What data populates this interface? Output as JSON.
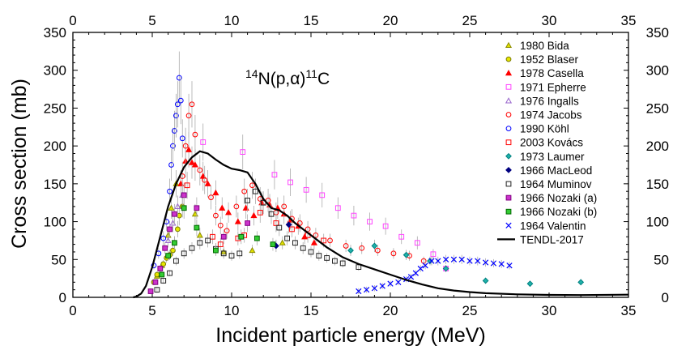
{
  "chart_data": {
    "type": "scatter",
    "title": "14N(p,α)11C",
    "title_parts": {
      "pre_sup": "14",
      "main1": "N(p,",
      "alpha": "α",
      "main2": ")",
      "post_sup": "11",
      "end": "C"
    },
    "xlabel": "Incident particle energy (MeV)",
    "ylabel": "Cross section (mb)",
    "xlim": [
      0,
      35
    ],
    "ylim": [
      0,
      350
    ],
    "xticks": [
      0,
      5,
      10,
      15,
      20,
      25,
      30,
      35
    ],
    "yticks": [
      0,
      50,
      100,
      150,
      200,
      250,
      300,
      350
    ],
    "legend_position": "top-right",
    "series": [
      {
        "name": "1980 Bida",
        "marker": "triangle",
        "color": "#8a8a00",
        "fill": "#e0e000",
        "points": [
          [
            5.3,
            28
          ],
          [
            5.6,
            42
          ],
          [
            6.0,
            82
          ],
          [
            6.2,
            118
          ],
          [
            6.5,
            150
          ],
          [
            7.7,
            110
          ],
          [
            8.0,
            82
          ],
          [
            9.5,
            60
          ],
          [
            11.3,
            62
          ],
          [
            13.2,
            72
          ]
        ]
      },
      {
        "name": "1952 Blaser",
        "marker": "circle",
        "color": "#7a7a00",
        "fill": "#e6e600",
        "points": [
          [
            5.1,
            20
          ],
          [
            5.3,
            30
          ],
          [
            5.5,
            38
          ],
          [
            5.7,
            44
          ],
          [
            5.9,
            52
          ],
          [
            6.1,
            56
          ],
          [
            6.3,
            62
          ],
          [
            6.4,
            72
          ],
          [
            6.6,
            90
          ],
          [
            6.7,
            108
          ],
          [
            6.9,
            120
          ]
        ]
      },
      {
        "name": "1978 Casella",
        "marker": "triangle",
        "color": "#ff0000",
        "fill": "#ff0000",
        "points": [
          [
            6.8,
            150
          ],
          [
            7.1,
            180
          ],
          [
            7.3,
            195
          ],
          [
            7.5,
            178
          ],
          [
            7.7,
            175
          ],
          [
            8.2,
            160
          ],
          [
            8.5,
            150
          ],
          [
            9.0,
            138
          ],
          [
            9.4,
            118
          ],
          [
            9.8,
            112
          ],
          [
            10.4,
            100
          ],
          [
            10.9,
            118
          ],
          [
            11.4,
            108
          ],
          [
            11.9,
            125
          ],
          [
            12.4,
            122
          ],
          [
            12.9,
            118
          ],
          [
            13.3,
            110
          ],
          [
            13.7,
            102
          ],
          [
            14.2,
            94
          ],
          [
            14.6,
            80
          ],
          [
            15.2,
            72
          ]
        ]
      },
      {
        "name": "1971 Epherre",
        "marker": "square",
        "color": "#ff44ff",
        "fill": "none",
        "points": [
          [
            8.2,
            205
          ],
          [
            10.7,
            192
          ],
          [
            12.7,
            162
          ],
          [
            13.7,
            152
          ],
          [
            14.7,
            142
          ],
          [
            15.7,
            135
          ],
          [
            16.7,
            118
          ],
          [
            17.7,
            108
          ],
          [
            18.7,
            100
          ],
          [
            19.7,
            94
          ],
          [
            20.7,
            80
          ],
          [
            21.7,
            72
          ],
          [
            22.7,
            57
          ],
          [
            23.5,
            38
          ]
        ]
      },
      {
        "name": "1976 Ingalls",
        "marker": "triangle",
        "color": "#9966cc",
        "fill": "none",
        "points": [
          [
            6.0,
            75
          ],
          [
            6.3,
            98
          ],
          [
            6.6,
            120
          ],
          [
            6.9,
            135
          ]
        ]
      },
      {
        "name": "1974 Jacobs",
        "marker": "circle",
        "color": "#ff0000",
        "fill": "none",
        "points": [
          [
            6.9,
            160
          ],
          [
            7.1,
            200
          ],
          [
            7.3,
            240
          ],
          [
            7.5,
            255
          ],
          [
            7.7,
            215
          ],
          [
            8.0,
            168
          ],
          [
            8.3,
            155
          ],
          [
            8.7,
            132
          ],
          [
            9.0,
            108
          ],
          [
            9.3,
            95
          ],
          [
            9.7,
            88
          ],
          [
            10.3,
            120
          ],
          [
            10.8,
            140
          ],
          [
            11.3,
            148
          ],
          [
            11.8,
            130
          ],
          [
            12.3,
            128
          ],
          [
            12.8,
            112
          ],
          [
            13.3,
            120
          ],
          [
            13.8,
            104
          ],
          [
            14.3,
            98
          ],
          [
            14.8,
            90
          ],
          [
            15.3,
            82
          ],
          [
            16.2,
            75
          ],
          [
            17.2,
            68
          ],
          [
            18.2,
            65
          ],
          [
            19.2,
            62
          ],
          [
            20.2,
            58
          ],
          [
            21.2,
            55
          ],
          [
            22.1,
            48
          ]
        ]
      },
      {
        "name": "1990 Köhl",
        "marker": "circle",
        "color": "#0000ff",
        "fill": "none",
        "points": [
          [
            5.1,
            42
          ],
          [
            5.4,
            58
          ],
          [
            5.7,
            78
          ],
          [
            5.9,
            100
          ],
          [
            6.1,
            140
          ],
          [
            6.2,
            175
          ],
          [
            6.3,
            200
          ],
          [
            6.4,
            220
          ],
          [
            6.5,
            240
          ],
          [
            6.6,
            255
          ],
          [
            6.7,
            290
          ],
          [
            6.8,
            260
          ],
          [
            6.9,
            210
          ]
        ]
      },
      {
        "name": "2003 Kovács",
        "marker": "square",
        "color": "#ff0000",
        "fill": "none",
        "points": [
          [
            7.2,
            148
          ],
          [
            8.8,
            80
          ],
          [
            9.3,
            70
          ],
          [
            10.4,
            78
          ],
          [
            10.8,
            82
          ],
          [
            11.8,
            112
          ],
          [
            12.8,
            98
          ],
          [
            13.8,
            90
          ],
          [
            14.8,
            82
          ],
          [
            15.8,
            75
          ]
        ]
      },
      {
        "name": "1973 Laumer",
        "marker": "diamond",
        "color": "#008080",
        "fill": "#20b2aa",
        "points": [
          [
            17.5,
            62
          ],
          [
            19.0,
            68
          ],
          [
            21.0,
            56
          ],
          [
            22.5,
            48
          ],
          [
            23.5,
            38
          ],
          [
            26.0,
            22
          ],
          [
            28.8,
            18
          ],
          [
            32.0,
            20
          ]
        ]
      },
      {
        "name": "1966 MacLeod",
        "marker": "diamond",
        "color": "#000080",
        "fill": "#000080",
        "points": [
          [
            12.8,
            68
          ],
          [
            13.6,
            96
          ]
        ]
      },
      {
        "name": "1964 Muminov",
        "marker": "square",
        "color": "#222222",
        "fill": "none",
        "points": [
          [
            5.3,
            10
          ],
          [
            5.7,
            22
          ],
          [
            6.1,
            32
          ],
          [
            6.5,
            48
          ],
          [
            7.0,
            58
          ],
          [
            7.5,
            65
          ],
          [
            8.0,
            72
          ],
          [
            8.5,
            75
          ],
          [
            9.0,
            64
          ],
          [
            9.5,
            58
          ],
          [
            10.0,
            55
          ],
          [
            10.5,
            58
          ],
          [
            11.0,
            128
          ],
          [
            11.5,
            140
          ],
          [
            12.0,
            125
          ],
          [
            12.5,
            110
          ],
          [
            13.0,
            92
          ],
          [
            13.5,
            78
          ],
          [
            14.0,
            72
          ],
          [
            14.5,
            65
          ],
          [
            15.0,
            60
          ],
          [
            15.5,
            55
          ],
          [
            16.0,
            52
          ],
          [
            16.5,
            48
          ],
          [
            17.0,
            45
          ],
          [
            18.0,
            40
          ]
        ]
      },
      {
        "name": "1966 Nozaki (a)",
        "marker": "square",
        "color": "#800080",
        "fill": "#cc33cc",
        "points": [
          [
            4.9,
            8
          ],
          [
            5.2,
            20
          ],
          [
            5.5,
            38
          ],
          [
            5.8,
            65
          ],
          [
            6.1,
            90
          ],
          [
            6.4,
            110
          ],
          [
            7.0,
            135
          ],
          [
            7.8,
            118
          ],
          [
            9.5,
            80
          ],
          [
            11.0,
            98
          ]
        ]
      },
      {
        "name": "1966 Nozaki (b)",
        "marker": "square",
        "color": "#006600",
        "fill": "#33cc33",
        "points": [
          [
            5.6,
            30
          ],
          [
            6.0,
            55
          ],
          [
            6.4,
            72
          ],
          [
            7.0,
            118
          ],
          [
            7.8,
            92
          ],
          [
            9.0,
            62
          ],
          [
            10.6,
            80
          ],
          [
            11.6,
            78
          ],
          [
            12.6,
            70
          ]
        ]
      },
      {
        "name": "1964 Valentin",
        "marker": "x",
        "color": "#0000ff",
        "fill": "none",
        "points": [
          [
            18.0,
            8
          ],
          [
            18.5,
            10
          ],
          [
            19.0,
            12
          ],
          [
            19.5,
            15
          ],
          [
            20.0,
            18
          ],
          [
            20.5,
            20
          ],
          [
            21.0,
            24
          ],
          [
            21.3,
            27
          ],
          [
            21.6,
            32
          ],
          [
            21.9,
            38
          ],
          [
            22.2,
            42
          ],
          [
            22.6,
            48
          ],
          [
            23.0,
            48
          ],
          [
            23.5,
            50
          ],
          [
            24.0,
            50
          ],
          [
            24.5,
            50
          ],
          [
            25.0,
            48
          ],
          [
            25.5,
            48
          ],
          [
            26.0,
            46
          ],
          [
            26.5,
            45
          ],
          [
            27.0,
            44
          ],
          [
            27.5,
            42
          ]
        ]
      },
      {
        "name": "TENDL-2017",
        "marker": "line",
        "color": "#000000",
        "fill": "none",
        "points": [
          [
            3.8,
            0
          ],
          [
            4.0,
            1
          ],
          [
            4.3,
            5
          ],
          [
            4.6,
            15
          ],
          [
            5.0,
            40
          ],
          [
            5.5,
            80
          ],
          [
            6.0,
            120
          ],
          [
            6.5,
            150
          ],
          [
            7.0,
            172
          ],
          [
            7.5,
            185
          ],
          [
            8.0,
            193
          ],
          [
            8.5,
            190
          ],
          [
            9.0,
            182
          ],
          [
            9.5,
            175
          ],
          [
            10.0,
            170
          ],
          [
            10.5,
            168
          ],
          [
            11.0,
            165
          ],
          [
            11.5,
            150
          ],
          [
            12.0,
            130
          ],
          [
            12.5,
            118
          ],
          [
            13.0,
            115
          ],
          [
            13.5,
            108
          ],
          [
            14.0,
            98
          ],
          [
            15.0,
            82
          ],
          [
            16.0,
            66
          ],
          [
            17.0,
            53
          ],
          [
            18.0,
            44
          ],
          [
            19.0,
            37
          ],
          [
            20.0,
            30
          ],
          [
            21.0,
            23
          ],
          [
            22.0,
            17
          ],
          [
            23.0,
            12
          ],
          [
            24.0,
            9
          ],
          [
            25.0,
            7
          ],
          [
            26.0,
            5.5
          ],
          [
            28.0,
            4
          ],
          [
            30.0,
            3.2
          ],
          [
            32.0,
            3
          ],
          [
            35.0,
            3.5
          ]
        ]
      }
    ]
  }
}
